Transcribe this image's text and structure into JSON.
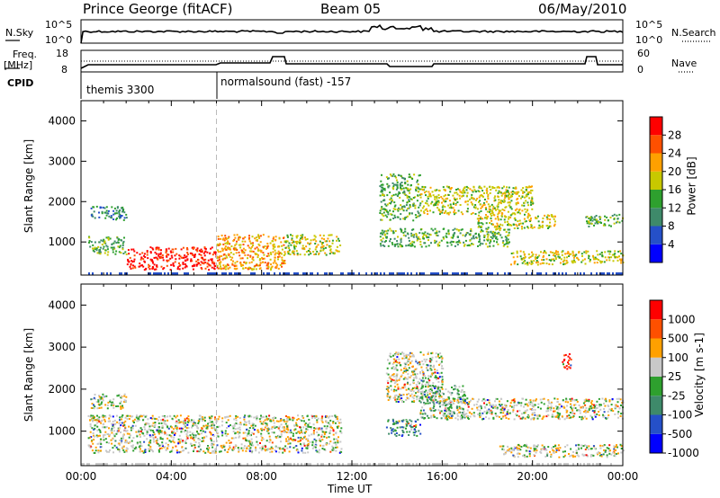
{
  "header": {
    "station": "Prince George (fitACF)",
    "beam": "Beam 05",
    "date": "06/May/2010"
  },
  "strip": {
    "nsky_label": "N.Sky",
    "nsky_ticks": [
      "10^5",
      "10^0"
    ],
    "nsearch_label": "N.Search",
    "nsearch_ticks": [
      "10^5",
      "10^0"
    ],
    "freq_label": "Freq.",
    "freq_unit": "[MHz]",
    "freq_ticks": [
      "18",
      "8"
    ],
    "nave_label": "Nave",
    "nave_ticks": [
      "60",
      "0"
    ],
    "cpid_label": "CPID",
    "cpid_modes": [
      {
        "name": "themis 3300",
        "start": 0
      },
      {
        "name": "normalsound (fast) -157",
        "start": 6
      }
    ]
  },
  "chart_data": [
    {
      "type": "heatmap",
      "name": "power",
      "xlabel": "",
      "ylabel": "Slant Range [km]",
      "xlim": [
        0,
        24
      ],
      "ylim": [
        180,
        4500
      ],
      "yticks": [
        1000,
        2000,
        3000,
        4000
      ],
      "colorbar": {
        "label": "Power [dB]",
        "ticks": [
          "28",
          "24",
          "20",
          "16",
          "12",
          "8",
          "4"
        ],
        "colors": [
          "#0000ff",
          "#2550c8",
          "#3e8a6a",
          "#2ea02e",
          "#c8c800",
          "#ffa000",
          "#ff5000",
          "#ff0000"
        ]
      },
      "echo_regions": [
        {
          "t0": 0.4,
          "t1": 2.0,
          "r0": 1550,
          "r1": 1900,
          "level": 2
        },
        {
          "t0": 0.3,
          "t1": 2.0,
          "r0": 700,
          "r1": 1150,
          "level": 3
        },
        {
          "t0": 2.0,
          "t1": 6.0,
          "r0": 330,
          "r1": 900,
          "level": 7
        },
        {
          "t0": 6.0,
          "t1": 9.0,
          "r0": 330,
          "r1": 1200,
          "level": 5
        },
        {
          "t0": 9.0,
          "t1": 11.5,
          "r0": 700,
          "r1": 1200,
          "level": 4
        },
        {
          "t0": 13.2,
          "t1": 15.0,
          "r0": 1550,
          "r1": 2700,
          "level": 3
        },
        {
          "t0": 13.2,
          "t1": 19.0,
          "r0": 900,
          "r1": 1350,
          "level": 3
        },
        {
          "t0": 15.0,
          "t1": 20.0,
          "r0": 1700,
          "r1": 2400,
          "level": 4
        },
        {
          "t0": 17.5,
          "t1": 21.0,
          "r0": 1350,
          "r1": 1700,
          "level": 4
        },
        {
          "t0": 19.0,
          "t1": 24.0,
          "r0": 450,
          "r1": 800,
          "level": 4
        },
        {
          "t0": 22.3,
          "t1": 24.0,
          "r0": 1400,
          "r1": 1700,
          "level": 3
        }
      ]
    },
    {
      "type": "heatmap",
      "name": "velocity",
      "xlabel": "Time UT",
      "ylabel": "Slant Range [km]",
      "xlim": [
        0,
        24
      ],
      "xticks": [
        "00:00",
        "04:00",
        "08:00",
        "12:00",
        "16:00",
        "20:00",
        "00:00"
      ],
      "ylim": [
        180,
        4500
      ],
      "yticks": [
        1000,
        2000,
        3000,
        4000
      ],
      "colorbar": {
        "label": "Velocity [m s-1]",
        "ticks": [
          "1000",
          "500",
          "100",
          "25",
          "-25",
          "-100",
          "-500",
          "-1000"
        ],
        "colors": [
          "#0000ff",
          "#2550c8",
          "#3e8a6a",
          "#2ea02e",
          "#c8c8c8",
          "#ffa000",
          "#ff5000",
          "#ff0000"
        ]
      },
      "echo_regions": [
        {
          "t0": 0.4,
          "t1": 2.0,
          "r0": 1550,
          "r1": 1900,
          "level": 4
        },
        {
          "t0": 0.3,
          "t1": 11.5,
          "r0": 500,
          "r1": 1400,
          "level": 4
        },
        {
          "t0": 13.5,
          "t1": 16.0,
          "r0": 1700,
          "r1": 2900,
          "level": 4
        },
        {
          "t0": 13.5,
          "t1": 15.0,
          "r0": 900,
          "r1": 1300,
          "level": 2
        },
        {
          "t0": 15.0,
          "t1": 17.0,
          "r0": 1300,
          "r1": 2100,
          "level": 3
        },
        {
          "t0": 16.0,
          "t1": 24.0,
          "r0": 1300,
          "r1": 1800,
          "level": 4
        },
        {
          "t0": 18.5,
          "t1": 24.0,
          "r0": 400,
          "r1": 700,
          "level": 4
        },
        {
          "t0": 21.3,
          "t1": 21.7,
          "r0": 2500,
          "r1": 2900,
          "level": 7
        }
      ]
    }
  ]
}
